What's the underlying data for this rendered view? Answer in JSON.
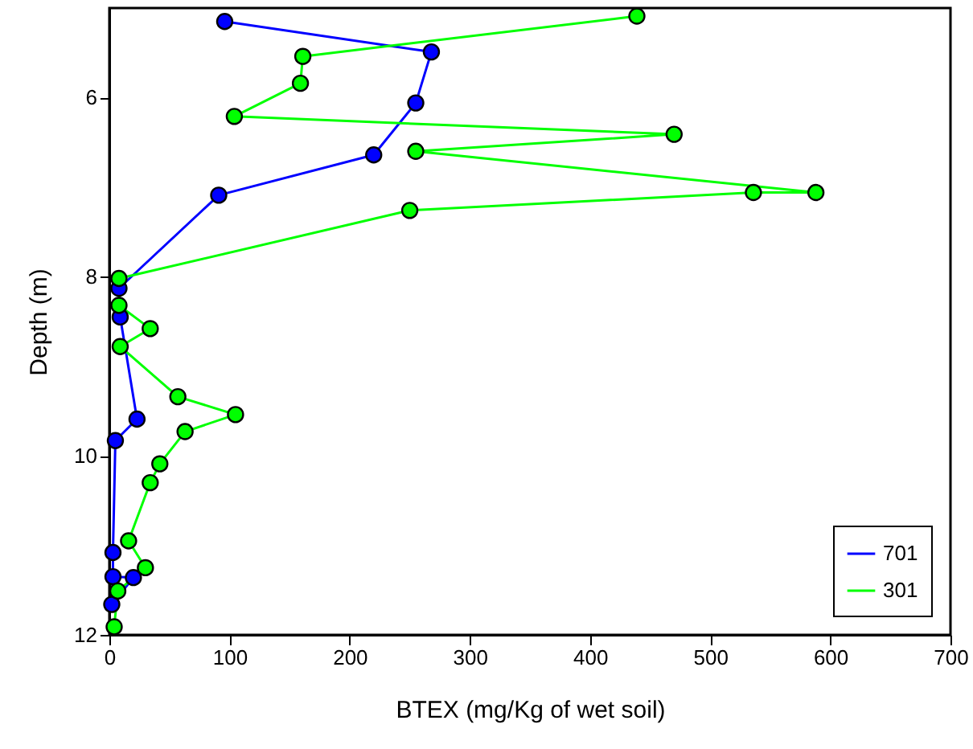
{
  "chart_data": {
    "type": "line",
    "xlabel": "BTEX (mg/Kg of wet soil)",
    "ylabel": "Depth (m)",
    "xlim": [
      0,
      700
    ],
    "xticks": [
      0,
      100,
      200,
      300,
      400,
      500,
      600,
      700
    ],
    "ylim": [
      12,
      5
    ],
    "yticks": [
      6,
      8,
      10,
      12
    ],
    "marker": "circle",
    "legend": "bottom right",
    "grid": false,
    "series": [
      {
        "name": "701",
        "color": "#0000ff",
        "x": [
          96,
          268,
          255,
          220,
          91,
          8,
          9,
          23,
          5,
          3,
          3,
          20,
          2
        ],
        "values": [
          5.15,
          5.49,
          6.06,
          6.64,
          7.09,
          8.13,
          8.45,
          9.59,
          9.83,
          11.08,
          11.35,
          11.36,
          11.66
        ]
      },
      {
        "name": "301",
        "color": "#00ff00",
        "x": [
          439,
          161,
          159,
          104,
          470,
          255,
          588,
          536,
          250,
          8,
          8,
          34,
          9,
          57,
          105,
          63,
          42,
          34,
          16,
          30,
          7,
          4
        ],
        "values": [
          5.09,
          5.54,
          5.84,
          6.21,
          6.41,
          6.6,
          7.06,
          7.06,
          7.26,
          8.02,
          8.32,
          8.58,
          8.78,
          9.34,
          9.54,
          9.73,
          10.09,
          10.3,
          10.95,
          11.25,
          11.51,
          11.91
        ]
      }
    ]
  }
}
